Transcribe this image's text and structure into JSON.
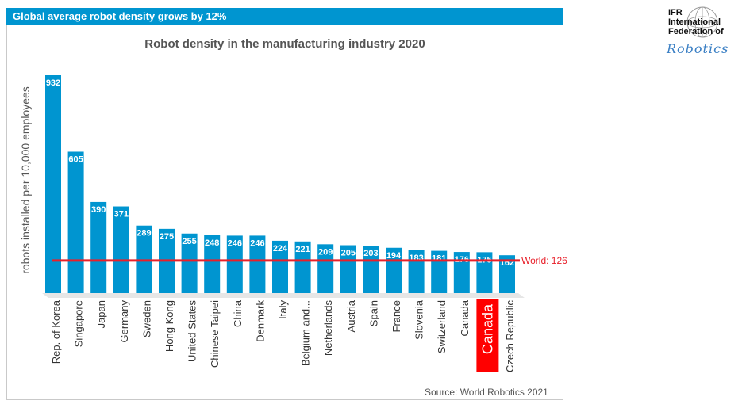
{
  "header": {
    "banner": "Global average robot density grows by 12%"
  },
  "logo": {
    "line1": "IFR",
    "line2": "International",
    "line3": "Federation of",
    "script": "Robotics",
    "icon": "globe-icon"
  },
  "source": "Source: World Robotics 2021",
  "colors": {
    "bar": "#0095d0",
    "world_line": "#e8202a",
    "highlight": "#ff0000",
    "banner": "#0095d0"
  },
  "chart_data": {
    "type": "bar",
    "title": "Robot density in the manufacturing industry 2020",
    "ylabel": "robots installed per 10,000 employees",
    "xlabel": "",
    "ylim": [
      0,
      960
    ],
    "grid": false,
    "categories": [
      "Rep. of Korea",
      "Singapore",
      "Japan",
      "Germany",
      "Sweden",
      "Hong Kong",
      "United States",
      "Chinese Taipei",
      "China",
      "Denmark",
      "Italy",
      "Belgium and...",
      "Netherlands",
      "Austria",
      "Spain",
      "France",
      "Slovenia",
      "Switzerland",
      "Canada",
      "Canada",
      "Czech Republic"
    ],
    "values": [
      932,
      605,
      390,
      371,
      289,
      275,
      255,
      248,
      246,
      246,
      224,
      221,
      209,
      205,
      203,
      194,
      183,
      181,
      176,
      175,
      162
    ],
    "highlight_index": 19,
    "reference_line": {
      "value": 126,
      "label": "World: 126"
    }
  }
}
